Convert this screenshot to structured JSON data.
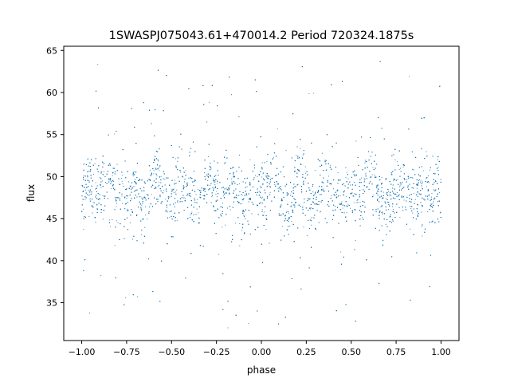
{
  "chart_data": {
    "type": "scatter",
    "title": "1SWASPJ075043.61+470014.2 Period 720324.1875s",
    "xlabel": "phase",
    "ylabel": "flux",
    "xlim": [
      -1.1,
      1.1
    ],
    "ylim": [
      30.5,
      65.5
    ],
    "xticks": [
      -1.0,
      -0.75,
      -0.5,
      -0.25,
      0.0,
      0.25,
      0.5,
      0.75,
      1.0
    ],
    "xtick_labels": [
      "−1.00",
      "−0.75",
      "−0.50",
      "−0.25",
      "0.00",
      "0.25",
      "0.50",
      "0.75",
      "1.00"
    ],
    "yticks": [
      35,
      40,
      45,
      50,
      55,
      60,
      65
    ],
    "ytick_labels": [
      "35",
      "40",
      "45",
      "50",
      "55",
      "60",
      "65"
    ],
    "grid": false,
    "series_color": "#1f77b4",
    "series": [
      {
        "x": [
          -1.0,
          -0.95,
          -0.9,
          -0.85,
          -0.8,
          -0.75,
          -0.7,
          -0.65,
          -0.6,
          -0.55,
          -0.5,
          -0.45,
          -0.4,
          -0.35,
          -0.3,
          -0.25,
          -0.2,
          -0.15,
          -0.1,
          -0.05,
          0.0,
          0.05,
          0.1,
          0.15,
          0.2,
          0.25,
          0.3,
          0.35,
          0.4,
          0.45,
          0.5,
          0.55,
          0.6,
          0.65,
          0.7,
          0.75,
          0.8,
          0.85,
          0.9,
          0.95,
          1.0
        ],
        "y": [
          48.0,
          49.5,
          47.5,
          50.0,
          48.5,
          46.5,
          49.0,
          47.0,
          50.5,
          48.0,
          46.5,
          49.5,
          48.5,
          47.0,
          50.0,
          48.0,
          47.5,
          49.0,
          46.5,
          48.5,
          47.5,
          50.0,
          48.5,
          46.0,
          49.5,
          48.0,
          47.0,
          50.0,
          48.5,
          46.5,
          49.0,
          47.5,
          50.5,
          48.0,
          46.5,
          49.5,
          48.5,
          47.0,
          49.0,
          48.0,
          48.5
        ],
        "note_range": [
          32,
          64
        ]
      }
    ]
  }
}
